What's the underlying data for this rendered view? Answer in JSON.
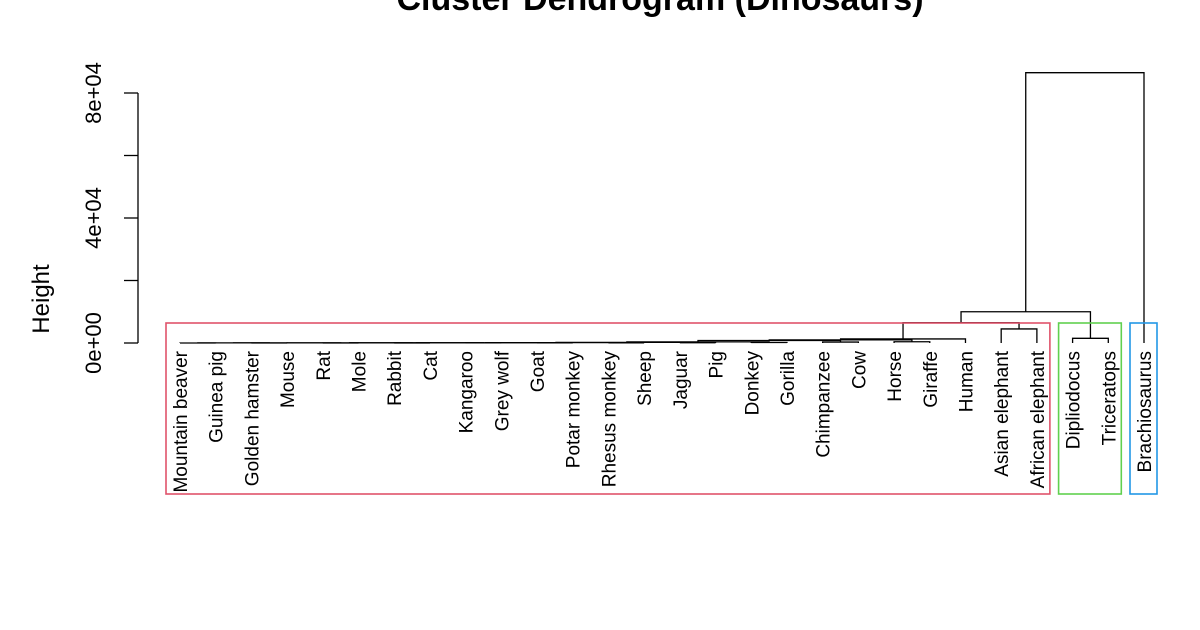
{
  "chart_data": {
    "type": "dendrogram",
    "title": "Cluster Dendrogram (Dinosaurs)",
    "ylabel": "Height",
    "y_ticks": [
      {
        "value": 0,
        "label": "0e+00"
      },
      {
        "value": 20000,
        "label": ""
      },
      {
        "value": 40000,
        "label": "4e+04"
      },
      {
        "value": 60000,
        "label": ""
      },
      {
        "value": 80000,
        "label": "8e+04"
      }
    ],
    "ylim": [
      0,
      90000
    ],
    "leaves": [
      "Mountain beaver",
      "Guinea pig",
      "Golden hamster",
      "Mouse",
      "Rat",
      "Mole",
      "Rabbit",
      "Cat",
      "Kangaroo",
      "Grey wolf",
      "Goat",
      "Potar monkey",
      "Rhesus monkey",
      "Sheep",
      "Jaguar",
      "Pig",
      "Donkey",
      "Gorilla",
      "Chimpanzee",
      "Cow",
      "Horse",
      "Giraffe",
      "Human",
      "Asian elephant",
      "African elephant",
      "Dipliodocus",
      "Triceratops",
      "Brachiosaurus"
    ],
    "merges": [
      {
        "a": "Mountain beaver",
        "b": "Guinea pig",
        "height": 10
      },
      {
        "a": "Golden hamster",
        "b": "Mouse",
        "height": 10
      },
      {
        "a": "Rat",
        "b": "Mole",
        "height": 10
      },
      {
        "a": "Rabbit",
        "b": "Cat",
        "height": 20
      },
      {
        "a": "Kangaroo",
        "b": "Grey wolf",
        "height": 30
      },
      {
        "a": "Goat",
        "b": "Potar monkey",
        "height": 50
      },
      {
        "a": "Rhesus monkey",
        "b": "Sheep",
        "height": 60
      },
      {
        "a": "Jaguar",
        "b": "Pig",
        "height": 100
      },
      {
        "a": "Donkey",
        "b": "Gorilla",
        "height": 150
      },
      {
        "a": "Chimpanzee",
        "b": "Cow",
        "height": 300
      },
      {
        "a": "Horse",
        "b": "Giraffe",
        "height": 400
      },
      {
        "a": "Dipliodocus",
        "b": "Triceratops",
        "height": 1500
      },
      {
        "a": "Asian elephant",
        "b": "African elephant",
        "height": 4500
      },
      {
        "a": "Mountain beaver",
        "b": "Golden hamster",
        "height": 30
      },
      {
        "a": "Mountain beaver",
        "b": "Rat",
        "height": 40
      },
      {
        "a": "Mountain beaver",
        "b": "Rabbit",
        "height": 50
      },
      {
        "a": "Mountain beaver",
        "b": "Kangaroo",
        "height": 70
      },
      {
        "a": "Mountain beaver",
        "b": "Goat",
        "height": 90
      },
      {
        "a": "Mountain beaver",
        "b": "Rhesus monkey",
        "height": 120
      },
      {
        "a": "Mountain beaver",
        "b": "Jaguar",
        "height": 200
      },
      {
        "a": "Mountain beaver",
        "b": "Donkey",
        "height": 350
      },
      {
        "a": "Mountain beaver",
        "b": "Chimpanzee",
        "height": 800
      },
      {
        "a": "Mountain beaver",
        "b": "Horse",
        "height": 1000
      },
      {
        "a": "Mountain beaver",
        "b": "Human",
        "height": 1300
      },
      {
        "a": "Mountain beaver",
        "b": "Asian elephant",
        "height": 6500
      },
      {
        "a": "Mountain beaver",
        "b": "Dipliodocus",
        "height": 10000
      },
      {
        "a": "Mountain beaver",
        "b": "Brachiosaurus",
        "height": 86500
      }
    ],
    "cluster_boxes": [
      {
        "from": "Mountain beaver",
        "to": "African elephant",
        "color": "#DF536B"
      },
      {
        "from": "Dipliodocus",
        "to": "Triceratops",
        "color": "#61D04F"
      },
      {
        "from": "Brachiosaurus",
        "to": "Brachiosaurus",
        "color": "#2297E6"
      }
    ],
    "grid": false,
    "legend": "none"
  }
}
